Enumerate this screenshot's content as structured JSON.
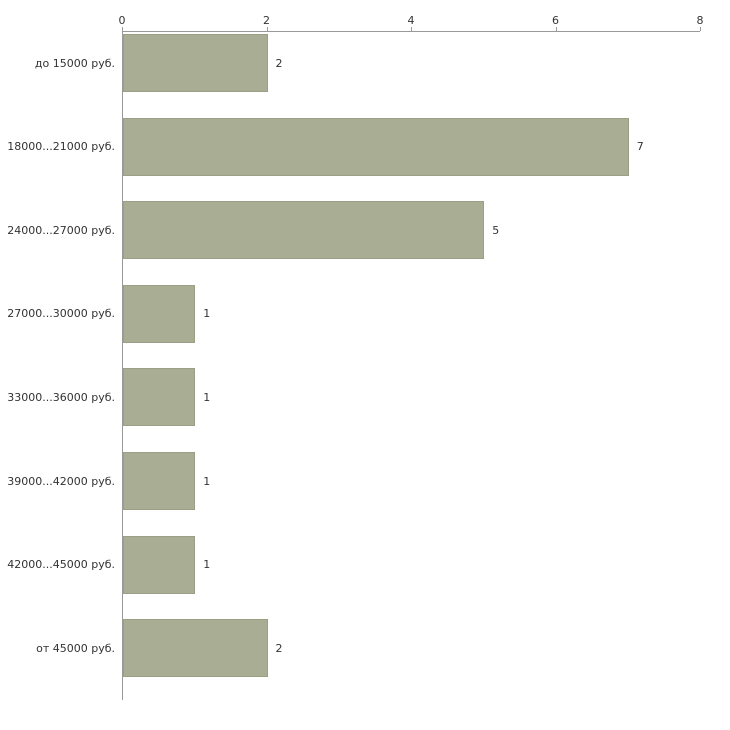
{
  "chart_data": {
    "type": "bar",
    "orientation": "horizontal",
    "title": "",
    "xlabel": "",
    "ylabel": "",
    "categories": [
      "до 15000 руб.",
      "18000...21000 руб.",
      "24000...27000 руб.",
      "27000...30000 руб.",
      "33000...36000 руб.",
      "39000...42000 руб.",
      "42000...45000 руб.",
      "от 45000 руб."
    ],
    "values": [
      2,
      7,
      5,
      1,
      1,
      1,
      1,
      2
    ],
    "value_labels": [
      "2",
      "7",
      "5",
      "1",
      "1",
      "1",
      "1",
      "2"
    ],
    "xlim": [
      0,
      8
    ],
    "x_ticks": [
      0,
      2,
      4,
      6,
      8
    ],
    "grid": false,
    "legend": "none",
    "colors": {
      "bar_fill": "#a9ad93",
      "bar_border": "#9aa084",
      "axis": "#999999",
      "text": "#333333"
    }
  }
}
